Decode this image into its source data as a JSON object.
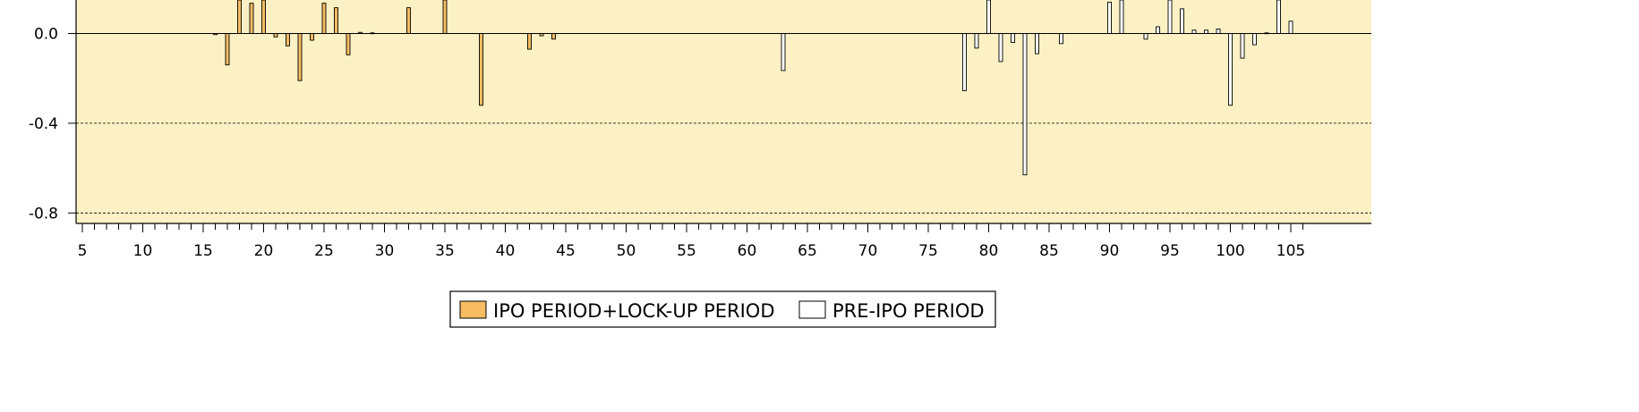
{
  "chart_data": {
    "type": "bar",
    "title": "",
    "xlabel": "",
    "ylabel": "",
    "ylim": [
      -0.85,
      0.15
    ],
    "xlim": [
      0,
      106
    ],
    "yticks": [
      {
        "value": 0.0,
        "label": "0.0"
      },
      {
        "value": -0.4,
        "label": "-0.4"
      },
      {
        "value": -0.8,
        "label": "-0.8"
      }
    ],
    "xticks": [
      {
        "value": 5,
        "label": "5"
      },
      {
        "value": 10,
        "label": "10"
      },
      {
        "value": 15,
        "label": "15"
      },
      {
        "value": 20,
        "label": "20"
      },
      {
        "value": 25,
        "label": "25"
      },
      {
        "value": 30,
        "label": "30"
      },
      {
        "value": 35,
        "label": "35"
      },
      {
        "value": 40,
        "label": "40"
      },
      {
        "value": 45,
        "label": "45"
      },
      {
        "value": 50,
        "label": "50"
      },
      {
        "value": 55,
        "label": "55"
      },
      {
        "value": 60,
        "label": "60"
      },
      {
        "value": 65,
        "label": "65"
      },
      {
        "value": 70,
        "label": "70"
      },
      {
        "value": 75,
        "label": "75"
      },
      {
        "value": 80,
        "label": "80"
      },
      {
        "value": 85,
        "label": "85"
      },
      {
        "value": 90,
        "label": "90"
      },
      {
        "value": 95,
        "label": "95"
      },
      {
        "value": 100,
        "label": "100"
      },
      {
        "value": 105,
        "label": "105"
      }
    ],
    "grid": "horizontal dashed at -0.4 and -0.8",
    "legend_position": "bottom-center",
    "plot_background": "#FBF1C4",
    "series": [
      {
        "name": "IPO PERIOD+LOCK-UP PERIOD",
        "color": "#F7BC62",
        "x": [
          16,
          17,
          18,
          19,
          20,
          21,
          22,
          23,
          24,
          25,
          26,
          27,
          28,
          29,
          32,
          35,
          38,
          42,
          43,
          44
        ],
        "values": [
          -0.005,
          -0.14,
          0.18,
          0.135,
          0.18,
          -0.015,
          -0.055,
          -0.21,
          -0.03,
          0.135,
          0.115,
          -0.095,
          0.005,
          0.003,
          0.115,
          0.18,
          -0.32,
          -0.07,
          -0.01,
          -0.025
        ]
      },
      {
        "name": "PRE-IPO PERIOD",
        "color": "#FFFFFF",
        "x": [
          63,
          78,
          79,
          80,
          81,
          82,
          83,
          84,
          86,
          90,
          91,
          93,
          94,
          95,
          96,
          97,
          98,
          99,
          100,
          101,
          102,
          103,
          104,
          105
        ],
        "values": [
          -0.165,
          -0.255,
          -0.065,
          0.18,
          -0.125,
          -0.04,
          -0.63,
          -0.09,
          -0.045,
          0.14,
          0.18,
          -0.025,
          0.03,
          0.18,
          0.11,
          0.015,
          0.015,
          0.02,
          -0.32,
          -0.11,
          -0.05,
          0.003,
          0.18,
          0.055
        ]
      }
    ]
  }
}
